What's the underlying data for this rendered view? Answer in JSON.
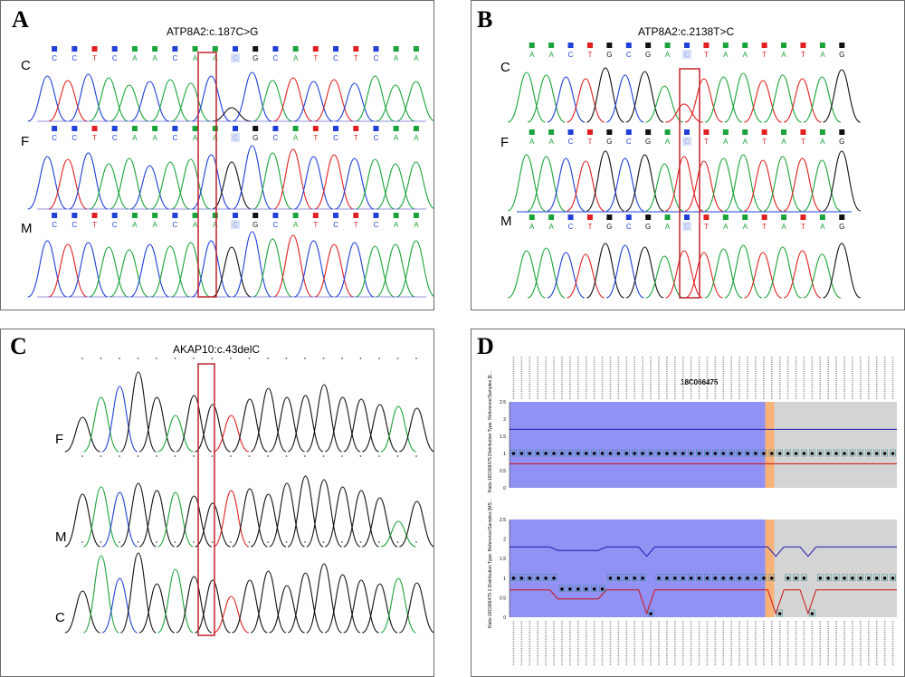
{
  "panels": {
    "A": {
      "label": "A",
      "title": "ATP8A2:c.187C>G",
      "samples": [
        "C",
        "F",
        "M"
      ],
      "bases": [
        "C",
        "C",
        "T",
        "C",
        "A",
        "A",
        "C",
        "A",
        "A",
        "C",
        "G",
        "C",
        "A",
        "T",
        "C",
        "T",
        "C",
        "A",
        "A"
      ],
      "highlight": 9
    },
    "B": {
      "label": "B",
      "title": "ATP8A2:c.2138T>C",
      "samples": [
        "C",
        "F",
        "M"
      ],
      "bases": [
        "A",
        "A",
        "C",
        "T",
        "G",
        "C",
        "G",
        "A",
        "C",
        "T",
        "A",
        "A",
        "T",
        "A",
        "T",
        "A",
        "G"
      ],
      "highlight": 8
    },
    "C": {
      "label": "C",
      "title": "AKAP10:c.43delC",
      "samples": [
        "F",
        "M",
        "C"
      ]
    },
    "D": {
      "label": "D",
      "title": "18C066475",
      "upper_ylabel": "Ratio\n18C066475\nDistribution Type: Reference/Samples [E...",
      "lower_ylabel": "Ratio\n18C066475-1\nDistribution Type: Reference/Samples [MS...",
      "y_ticks": [
        "2.5",
        "2",
        "1.5",
        "1",
        "0.5",
        "0"
      ]
    }
  },
  "colors": {
    "A": "#1aa33a",
    "C": "#1f3fd6",
    "G": "#111111",
    "T": "#e02020",
    "box": "#c0202b",
    "purple": "#7f7ff2",
    "grey": "#d4d4d4",
    "orange": "#f7b27a"
  }
}
